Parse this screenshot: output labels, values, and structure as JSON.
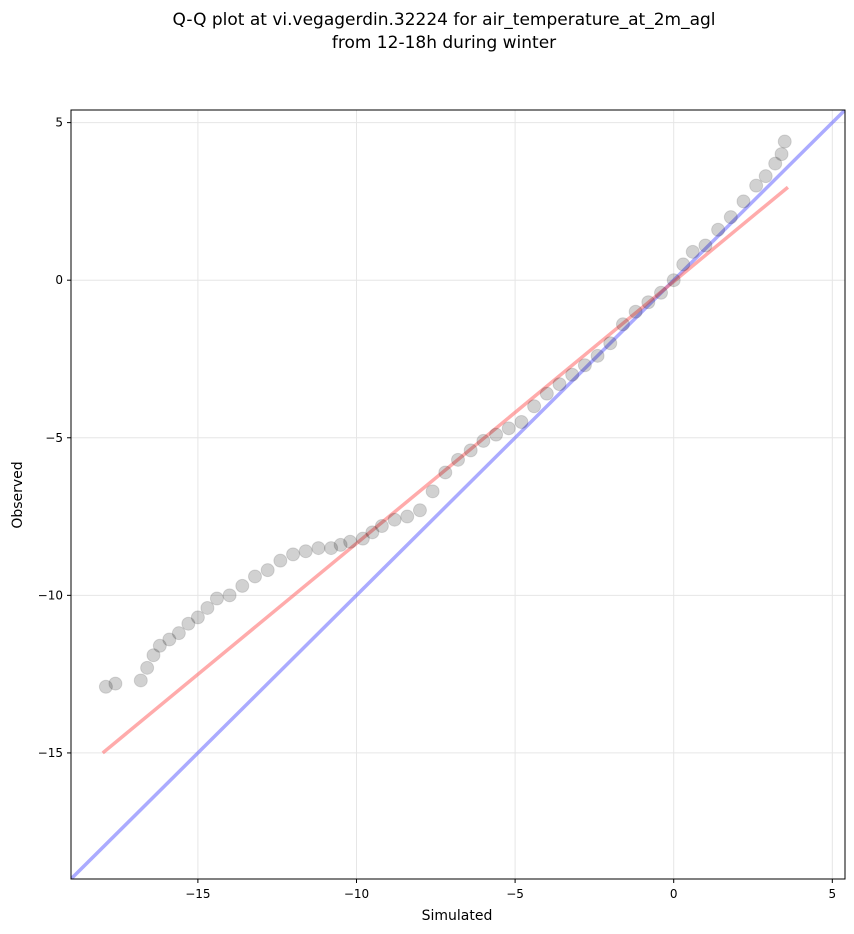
{
  "chart_data": {
    "type": "scatter",
    "title": "Q-Q plot at vi.vegagerdin.32224 for air_temperature_at_2m_agl",
    "subtitle": "from 12-18h during winter",
    "xlabel": "Simulated",
    "ylabel": "Observed",
    "xlim": [
      -19,
      5.4
    ],
    "ylim": [
      -19,
      5.4
    ],
    "xticks": [
      -15,
      -10,
      -5,
      0,
      5
    ],
    "yticks": [
      -15,
      -10,
      -5,
      0,
      5
    ],
    "xtick_labels": [
      "−15",
      "−10",
      "−5",
      "0",
      "5"
    ],
    "ytick_labels": [
      "−15",
      "−10",
      "−5",
      "0",
      "5"
    ],
    "grid": true,
    "series": [
      {
        "color": "#000000",
        "x": [
          -17.9,
          -17.6,
          -16.8,
          -16.6,
          -16.4,
          -16.2,
          -15.9,
          -15.6,
          -15.3,
          -15.0,
          -14.7,
          -14.4,
          -14.0,
          -13.6,
          -13.2,
          -12.8,
          -12.4,
          -12.0,
          -11.6,
          -11.2,
          -10.8,
          -10.5,
          -10.2,
          -9.8,
          -9.5,
          -9.2,
          -8.8,
          -8.4,
          -8.0,
          -7.6,
          -7.2,
          -6.8,
          -6.4,
          -6.0,
          -5.6,
          -5.2,
          -4.8,
          -4.4,
          -4.0,
          -3.6,
          -3.2,
          -2.8,
          -2.4,
          -2.0,
          -1.6,
          -1.2,
          -0.8,
          -0.4,
          0.0,
          0.3,
          0.6,
          1.0,
          1.4,
          1.8,
          2.2,
          2.6,
          2.9,
          3.2,
          3.4,
          3.5
        ],
        "y": [
          -12.9,
          -12.8,
          -12.7,
          -12.3,
          -11.9,
          -11.6,
          -11.4,
          -11.2,
          -10.9,
          -10.7,
          -10.4,
          -10.1,
          -10.0,
          -9.7,
          -9.4,
          -9.2,
          -8.9,
          -8.7,
          -8.6,
          -8.5,
          -8.5,
          -8.4,
          -8.3,
          -8.2,
          -8.0,
          -7.8,
          -7.6,
          -7.5,
          -7.3,
          -6.7,
          -6.1,
          -5.7,
          -5.4,
          -5.1,
          -4.9,
          -4.7,
          -4.5,
          -4.0,
          -3.6,
          -3.3,
          -3.0,
          -2.7,
          -2.4,
          -2.0,
          -1.4,
          -1.0,
          -0.7,
          -0.4,
          0.0,
          0.5,
          0.9,
          1.1,
          1.6,
          2.0,
          2.5,
          3.0,
          3.3,
          3.7,
          4.0,
          4.4
        ]
      },
      {
        "color": "#ff6666",
        "type": "line",
        "x": [
          -18.0,
          3.6
        ],
        "y": [
          -15.0,
          2.95
        ]
      },
      {
        "color": "#6666ff",
        "type": "line",
        "x": [
          -19.0,
          5.4
        ],
        "y": [
          -19.0,
          5.4
        ]
      }
    ]
  }
}
